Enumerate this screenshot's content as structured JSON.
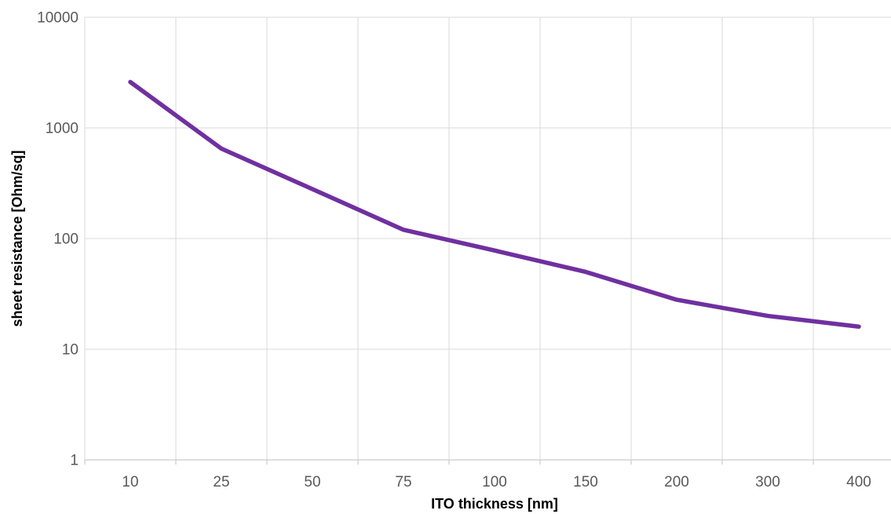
{
  "chart_data": {
    "type": "line",
    "title": "",
    "xlabel": "ITO thickness [nm]",
    "ylabel": "sheet resistance [Ohm/sq]",
    "categories": [
      "10",
      "25",
      "50",
      "75",
      "100",
      "150",
      "200",
      "300",
      "400"
    ],
    "values": [
      2600,
      650,
      280,
      120,
      78,
      50,
      28,
      20,
      16
    ],
    "series": [
      {
        "name": "sheet resistance",
        "values": [
          2600,
          650,
          280,
          120,
          78,
          50,
          28,
          20,
          16
        ]
      }
    ],
    "y_scale": "log",
    "ylim": [
      1,
      10000
    ],
    "y_ticks": [
      10000,
      1000,
      100,
      10,
      1
    ],
    "y_tick_labels": [
      "10000",
      "1000",
      "100",
      "10",
      "1"
    ],
    "x_tick_labels": [
      "10",
      "25",
      "50",
      "75",
      "100",
      "150",
      "200",
      "300",
      "400"
    ],
    "grid": true,
    "legend_position": "none",
    "colors": {
      "line": "#7030A0",
      "gridline": "#D9D9D9",
      "axis": "#BFBFBF",
      "tick_text": "#595959",
      "title_text": "#000000",
      "background": "#FFFFFF"
    }
  }
}
